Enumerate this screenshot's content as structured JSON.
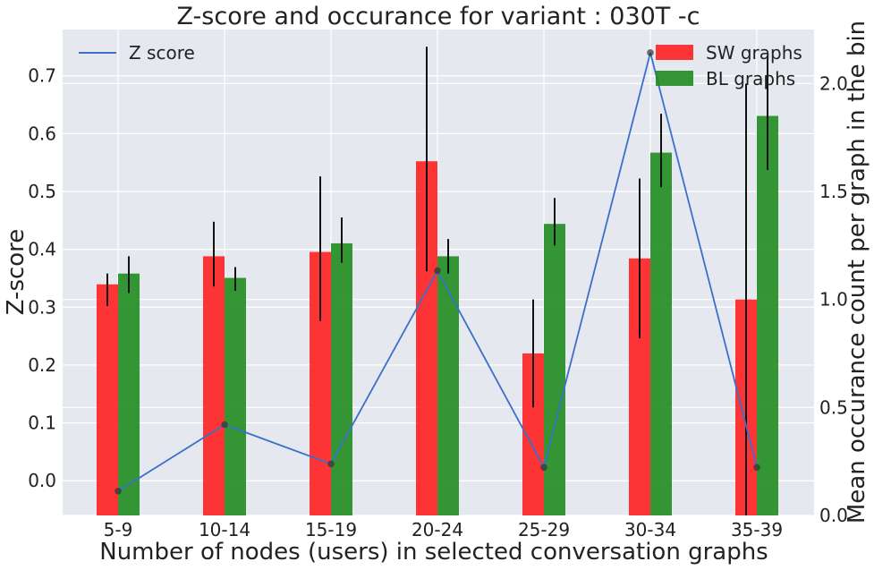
{
  "chart_data": {
    "type": "bar",
    "title": "Z-score and occurance for variant : 030T -c",
    "xlabel": "Number of nodes (users) in selected conversation graphs",
    "ylabel_left": "Z-score",
    "ylabel_right": "Mean occurance count per graph in the bin",
    "categories": [
      "5-9",
      "10-14",
      "15-19",
      "20-24",
      "25-29",
      "30-34",
      "35-39"
    ],
    "left_ylim": [
      -0.06,
      0.78
    ],
    "left_ticks": [
      0.0,
      0.1,
      0.2,
      0.3,
      0.4,
      0.5,
      0.6,
      0.7
    ],
    "left_tick_labels": [
      "0.0",
      "0.1",
      "0.2",
      "0.3",
      "0.4",
      "0.5",
      "0.6",
      "0.7"
    ],
    "right_ylim": [
      0.0,
      2.25
    ],
    "right_ticks": [
      0.0,
      0.5,
      1.0,
      1.5,
      2.0
    ],
    "right_tick_labels": [
      "0.0",
      "0.5",
      "1.0",
      "1.5",
      "2.0"
    ],
    "line_series": {
      "name": "Z score",
      "color": "#3a70c8",
      "values": [
        -0.018,
        0.097,
        0.029,
        0.363,
        0.023,
        0.74,
        0.023
      ]
    },
    "bar_series": [
      {
        "name": "SW graphs",
        "color": "#ff2020",
        "values": [
          1.07,
          1.2,
          1.22,
          1.64,
          0.75,
          1.19,
          1.0
        ],
        "err_low": [
          0.97,
          1.06,
          0.9,
          1.13,
          0.5,
          0.82,
          0.0
        ],
        "err_high": [
          1.12,
          1.36,
          1.57,
          2.17,
          1.0,
          1.56,
          2.0
        ]
      },
      {
        "name": "BL graphs",
        "color": "#1f8c1f",
        "values": [
          1.12,
          1.1,
          1.26,
          1.2,
          1.35,
          1.68,
          1.85
        ],
        "err_low": [
          1.03,
          1.04,
          1.17,
          1.12,
          1.25,
          1.52,
          1.6
        ],
        "err_high": [
          1.2,
          1.15,
          1.38,
          1.28,
          1.47,
          1.86,
          2.13
        ]
      }
    ],
    "legend_left_position": "top-left",
    "legend_right_position": "top-right",
    "grid": true,
    "colors": {
      "background": "#e6e8ef",
      "grid": "#ffffff",
      "error_bar": "#111111"
    }
  }
}
